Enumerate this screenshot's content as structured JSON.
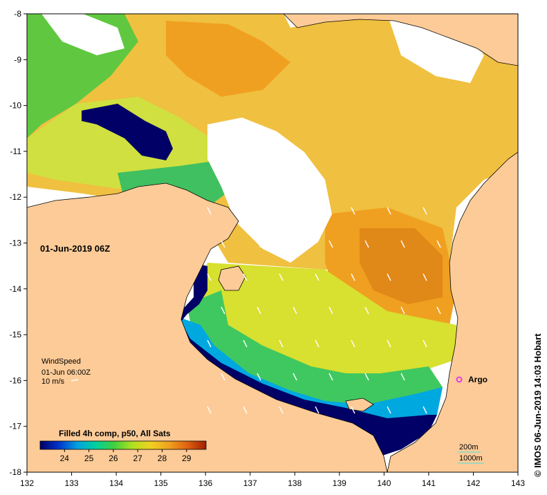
{
  "map": {
    "time_label": "01-Jun-2019 06Z",
    "credit": "© IMOS 06-Jun-2019 14:03 Hobart",
    "lon_ticks": [
      "132",
      "133",
      "134",
      "135",
      "136",
      "137",
      "138",
      "139",
      "140",
      "141",
      "142",
      "143"
    ],
    "lat_ticks": [
      "-8",
      "-9",
      "-10",
      "-11",
      "-12",
      "-13",
      "-14",
      "-15",
      "-16",
      "-17",
      "-18"
    ],
    "lon_range": [
      132,
      143
    ],
    "lat_range": [
      -18,
      -8
    ],
    "land_color": "#fccb98"
  },
  "wind_legend": {
    "title": "WindSpeed",
    "time": "01-Jun 06:00Z",
    "scale": "10 m/s"
  },
  "argo": {
    "label": "Argo",
    "lon": 141.7,
    "lat": -16.05,
    "color": "#e040e0"
  },
  "depth_legend": {
    "contour_200": "200m",
    "contour_1000": "1000m"
  },
  "colorbar": {
    "title": "Filled 4h comp, p50, All Sats",
    "tick_labels": [
      "24",
      "25",
      "26",
      "27",
      "28",
      "29"
    ],
    "range": [
      23,
      29.8
    ],
    "colors": [
      "#000066",
      "#0033cc",
      "#00a0e0",
      "#00d0a0",
      "#40d040",
      "#b0e020",
      "#f0d020",
      "#f0a020",
      "#e06010",
      "#a02000"
    ]
  }
}
